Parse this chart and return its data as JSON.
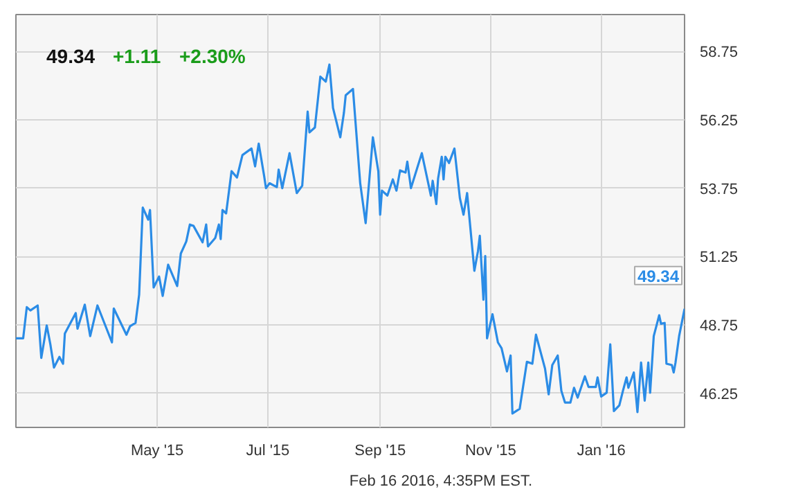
{
  "chart_data": {
    "type": "line",
    "x": [
      "2015-02-12",
      "2015-02-16",
      "2015-02-18",
      "2015-02-20",
      "2015-02-24",
      "2015-02-26",
      "2015-03-01",
      "2015-03-03",
      "2015-03-05",
      "2015-03-08",
      "2015-03-10",
      "2015-03-11",
      "2015-03-17",
      "2015-03-18",
      "2015-03-22",
      "2015-03-25",
      "2015-03-29",
      "2015-04-06",
      "2015-04-07",
      "2015-04-14",
      "2015-04-16",
      "2015-04-19",
      "2015-04-21",
      "2015-04-23",
      "2015-04-26",
      "2015-04-27",
      "2015-04-29",
      "2015-05-02",
      "2015-05-04",
      "2015-05-07",
      "2015-05-12",
      "2015-05-14",
      "2015-05-17",
      "2015-05-19",
      "2015-05-21",
      "2015-05-26",
      "2015-05-28",
      "2015-05-29",
      "2015-06-02",
      "2015-06-04",
      "2015-06-05",
      "2015-06-06",
      "2015-06-08",
      "2015-06-11",
      "2015-06-14",
      "2015-06-17",
      "2015-06-22",
      "2015-06-24",
      "2015-06-26",
      "2015-06-29",
      "2015-06-30",
      "2015-07-02",
      "2015-07-06",
      "2015-07-07",
      "2015-07-09",
      "2015-07-13",
      "2015-07-17",
      "2015-07-20",
      "2015-07-23",
      "2015-07-24",
      "2015-07-27",
      "2015-07-30",
      "2015-08-02",
      "2015-08-04",
      "2015-08-06",
      "2015-08-10",
      "2015-08-12",
      "2015-08-13",
      "2015-08-17",
      "2015-08-21",
      "2015-08-24",
      "2015-08-28",
      "2015-08-31",
      "2015-09-01",
      "2015-09-02",
      "2015-09-05",
      "2015-09-08",
      "2015-09-10",
      "2015-09-12",
      "2015-09-15",
      "2015-09-16",
      "2015-09-18",
      "2015-09-24",
      "2015-09-29",
      "2015-09-30",
      "2015-10-02",
      "2015-10-03",
      "2015-10-05",
      "2015-10-06",
      "2015-10-07",
      "2015-10-09",
      "2015-10-12",
      "2015-10-15",
      "2015-10-17",
      "2015-10-19",
      "2015-10-23",
      "2015-10-25",
      "2015-10-26",
      "2015-10-28",
      "2015-10-29",
      "2015-10-30",
      "2015-11-02",
      "2015-11-05",
      "2015-11-07",
      "2015-11-10",
      "2015-11-12",
      "2015-11-13",
      "2015-11-17",
      "2015-11-21",
      "2015-11-24",
      "2015-11-26",
      "2015-12-01",
      "2015-12-03",
      "2015-12-05",
      "2015-12-08",
      "2015-12-10",
      "2015-12-12",
      "2015-12-15",
      "2015-12-17",
      "2015-12-19",
      "2015-12-23",
      "2015-12-25",
      "2015-12-29",
      "2015-12-30",
      "2016-01-01",
      "2016-01-04",
      "2016-01-06",
      "2016-01-08",
      "2016-01-11",
      "2016-01-13",
      "2016-01-15",
      "2016-01-16",
      "2016-01-19",
      "2016-01-21",
      "2016-01-23",
      "2016-01-25",
      "2016-01-27",
      "2016-01-28",
      "2016-01-30",
      "2016-02-02",
      "2016-02-03",
      "2016-02-05",
      "2016-02-06",
      "2016-02-09",
      "2016-02-10",
      "2016-02-11",
      "2016-02-13",
      "2016-02-16"
    ],
    "series": [
      {
        "color": "#2b8ce6",
        "values": [
          48.26,
          48.26,
          49.4,
          49.28,
          49.46,
          47.54,
          48.73,
          48.04,
          47.19,
          47.58,
          47.33,
          48.43,
          49.18,
          48.61,
          49.49,
          48.34,
          49.46,
          48.11,
          49.35,
          48.39,
          48.7,
          48.82,
          49.85,
          53.04,
          52.6,
          52.95,
          50.12,
          50.52,
          49.81,
          50.95,
          50.17,
          51.36,
          51.8,
          52.42,
          52.37,
          51.77,
          52.42,
          51.62,
          51.93,
          52.42,
          51.89,
          52.95,
          52.83,
          54.37,
          54.14,
          54.96,
          55.2,
          54.55,
          55.38,
          54.19,
          53.75,
          53.93,
          53.79,
          54.43,
          53.75,
          55.03,
          53.57,
          53.84,
          56.55,
          55.79,
          55.97,
          57.83,
          57.65,
          58.27,
          56.68,
          55.61,
          56.5,
          57.15,
          57.38,
          53.93,
          52.47,
          55.61,
          54.37,
          52.78,
          53.66,
          53.48,
          54.07,
          53.66,
          54.4,
          54.32,
          54.72,
          53.75,
          55.03,
          53.48,
          54.02,
          53.17,
          54.11,
          54.9,
          54.07,
          54.9,
          54.67,
          55.2,
          53.39,
          52.78,
          53.57,
          50.73,
          51.45,
          52.01,
          49.67,
          51.27,
          48.26,
          49.14,
          48.11,
          47.9,
          47.05,
          47.63,
          45.51,
          45.68,
          47.4,
          47.33,
          48.39,
          47.15,
          46.21,
          47.28,
          47.63,
          46.34,
          45.91,
          45.91,
          46.45,
          46.09,
          46.87,
          46.48,
          46.48,
          46.83,
          46.13,
          46.27,
          48.04,
          45.6,
          45.81,
          46.34,
          46.83,
          46.45,
          47.01,
          45.56,
          47.37,
          45.98,
          47.37,
          46.27,
          48.34,
          49.1,
          48.79,
          48.82,
          47.33,
          47.28,
          47.01,
          47.37,
          48.34,
          49.34
        ]
      }
    ],
    "xlim": [
      "2015-02-12",
      "2016-02-16"
    ],
    "xticks": [
      {
        "value": "2015-05-01",
        "label": "May '15"
      },
      {
        "value": "2015-07-01",
        "label": "Jul '15"
      },
      {
        "value": "2015-09-01",
        "label": "Sep '15"
      },
      {
        "value": "2015-11-01",
        "label": "Nov '15"
      },
      {
        "value": "2016-01-01",
        "label": "Jan '16"
      }
    ],
    "ylim": [
      45.0,
      60.1
    ],
    "yticks": [
      46.25,
      48.75,
      51.25,
      53.75,
      56.25,
      58.75
    ],
    "grid": true,
    "annotations": [
      "49.34",
      "+1.11",
      "+2.30%",
      {
        "text": "49.34",
        "x": "2016-02-16",
        "y": 49.34
      },
      "Feb 16 2016, 4:35PM EST."
    ]
  }
}
